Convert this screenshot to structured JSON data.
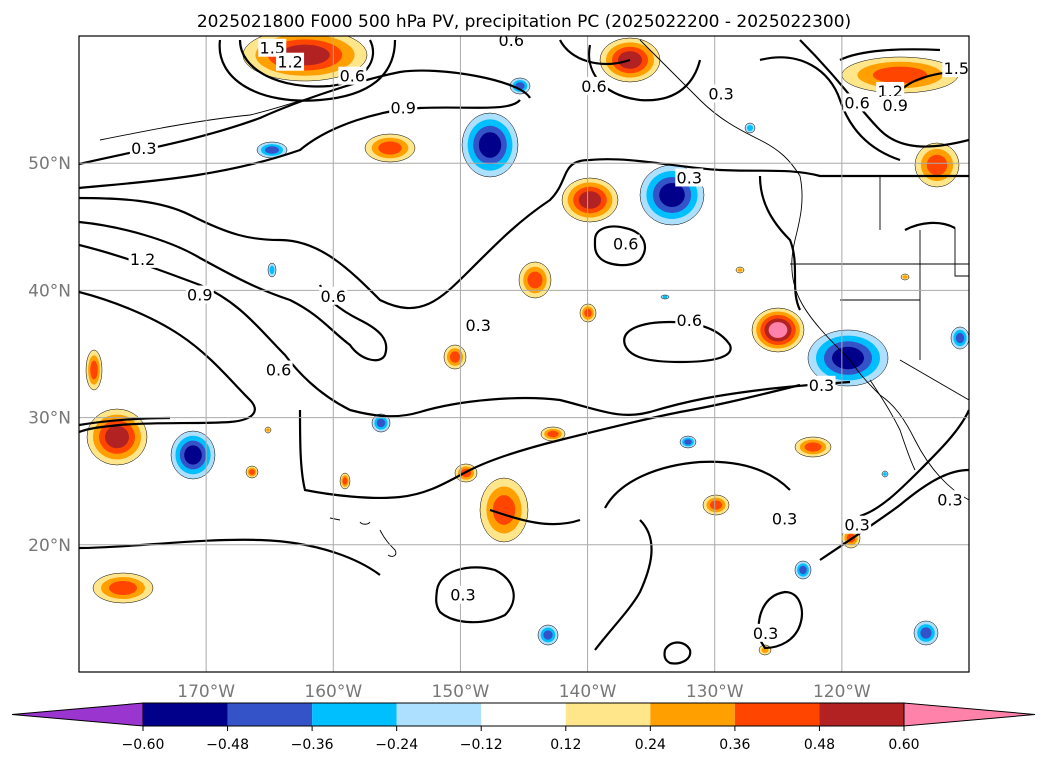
{
  "title": "2025021800 F000 500 hPa PV, precipitation PC (2025022200 - 2025022300)",
  "map": {
    "lon_range": [
      -180,
      -110
    ],
    "lat_range": [
      10,
      60
    ],
    "lon_ticks": [
      {
        "value": -170,
        "label": "170°W"
      },
      {
        "value": -160,
        "label": "160°W"
      },
      {
        "value": -150,
        "label": "150°W"
      },
      {
        "value": -140,
        "label": "140°W"
      },
      {
        "value": -130,
        "label": "130°W"
      },
      {
        "value": -120,
        "label": "120°W"
      }
    ],
    "lat_ticks": [
      {
        "value": 50,
        "label": "50°N"
      },
      {
        "value": 40,
        "label": "40°N"
      },
      {
        "value": 30,
        "label": "30°N"
      },
      {
        "value": 20,
        "label": "20°N"
      }
    ],
    "grid": true,
    "contour_labels": [
      {
        "text": "0.6",
        "lon": -146.0,
        "lat": 59.6
      },
      {
        "text": "1.5",
        "lon": -164.8,
        "lat": 59.0
      },
      {
        "text": "1.2",
        "lon": -163.4,
        "lat": 57.9
      },
      {
        "text": "0.6",
        "lon": -158.5,
        "lat": 56.8
      },
      {
        "text": "0.6",
        "lon": -139.5,
        "lat": 56.0
      },
      {
        "text": "0.3",
        "lon": -129.5,
        "lat": 55.4
      },
      {
        "text": "0.6",
        "lon": -118.8,
        "lat": 54.7
      },
      {
        "text": "1.2",
        "lon": -116.2,
        "lat": 55.6
      },
      {
        "text": "0.9",
        "lon": -115.8,
        "lat": 54.5
      },
      {
        "text": "1.5",
        "lon": -111.0,
        "lat": 57.4
      },
      {
        "text": "0.9",
        "lon": -154.5,
        "lat": 54.3
      },
      {
        "text": "0.3",
        "lon": -174.9,
        "lat": 51.1
      },
      {
        "text": "0.3",
        "lon": -132.0,
        "lat": 48.8
      },
      {
        "text": "1.2",
        "lon": -175.0,
        "lat": 42.4
      },
      {
        "text": "0.9",
        "lon": -170.5,
        "lat": 39.6
      },
      {
        "text": "0.6",
        "lon": -160.0,
        "lat": 39.5
      },
      {
        "text": "0.6",
        "lon": -137.0,
        "lat": 43.6
      },
      {
        "text": "0.3",
        "lon": -148.6,
        "lat": 37.2
      },
      {
        "text": "0.6",
        "lon": -132.0,
        "lat": 37.6
      },
      {
        "text": "0.6",
        "lon": -164.3,
        "lat": 33.7
      },
      {
        "text": "0.3",
        "lon": -121.6,
        "lat": 32.5
      },
      {
        "text": "0.3",
        "lon": -124.5,
        "lat": 22.0
      },
      {
        "text": "0.3",
        "lon": -118.8,
        "lat": 21.5
      },
      {
        "text": "0.3",
        "lon": -111.5,
        "lat": 23.5
      },
      {
        "text": "0.3",
        "lon": -149.8,
        "lat": 16.0
      },
      {
        "text": "0.3",
        "lon": -126.0,
        "lat": 13.0
      }
    ]
  },
  "colorbar": {
    "ticks": [
      "−0.60",
      "−0.48",
      "−0.36",
      "−0.24",
      "−0.12",
      "0.12",
      "0.24",
      "0.36",
      "0.48",
      "0.60"
    ],
    "colors": [
      "#9a35d0",
      "#00008b",
      "#3553c9",
      "#00bfff",
      "#addfff",
      "#ffffff",
      "#ffe68a",
      "#ff9f00",
      "#ff4500",
      "#b22222",
      "#ff82ab"
    ]
  },
  "precip_colors": {
    "pos_low": "#ffe68a",
    "pos_mid": "#ff9f00",
    "pos_high": "#ff4500",
    "pos_higher": "#b22222",
    "pos_max": "#ff82ab",
    "neg_low": "#addfff",
    "neg_mid": "#00bfff",
    "neg_high": "#3553c9",
    "neg_max": "#00008b"
  }
}
